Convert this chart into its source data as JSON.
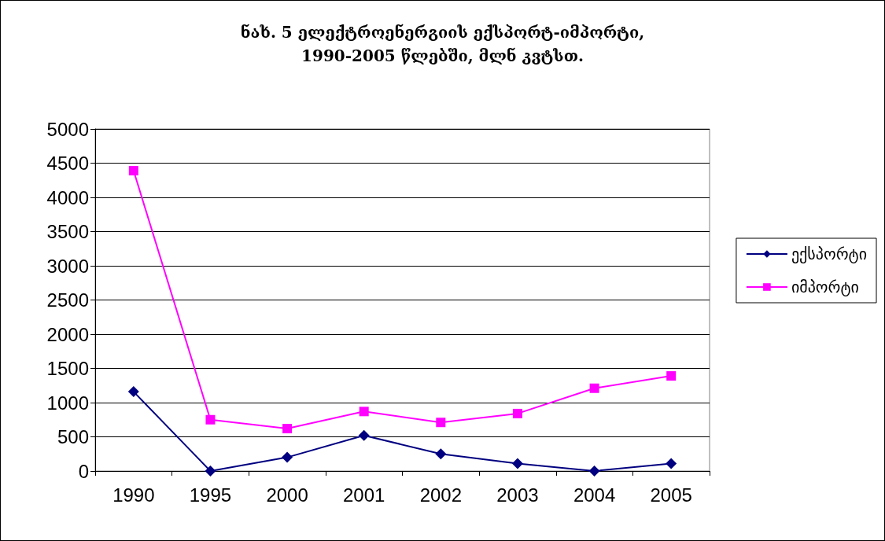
{
  "chart_data": {
    "type": "line",
    "title": "ნახ. 5 ელექტროენერგიის ექსპორტ-იმპორტი,1990-2005 წლებში, მლნ კვტსთ.",
    "categories": [
      "1990",
      "1995",
      "2000",
      "2001",
      "2002",
      "2003",
      "2004",
      "2005"
    ],
    "series": [
      {
        "name": "ექსპორტი",
        "color": "#000080",
        "marker": "diamond",
        "values": [
          1160,
          0,
          200,
          520,
          250,
          110,
          0,
          110
        ]
      },
      {
        "name": "იმპორტი",
        "color": "#ff00ff",
        "marker": "square",
        "values": [
          4390,
          750,
          620,
          870,
          710,
          840,
          1210,
          1390
        ]
      }
    ],
    "ylim": [
      0,
      5000
    ],
    "yticks": [
      0,
      500,
      1000,
      1500,
      2000,
      2500,
      3000,
      3500,
      4000,
      4500,
      5000
    ],
    "grid": "y",
    "legend": "right",
    "line_style": "solid"
  }
}
